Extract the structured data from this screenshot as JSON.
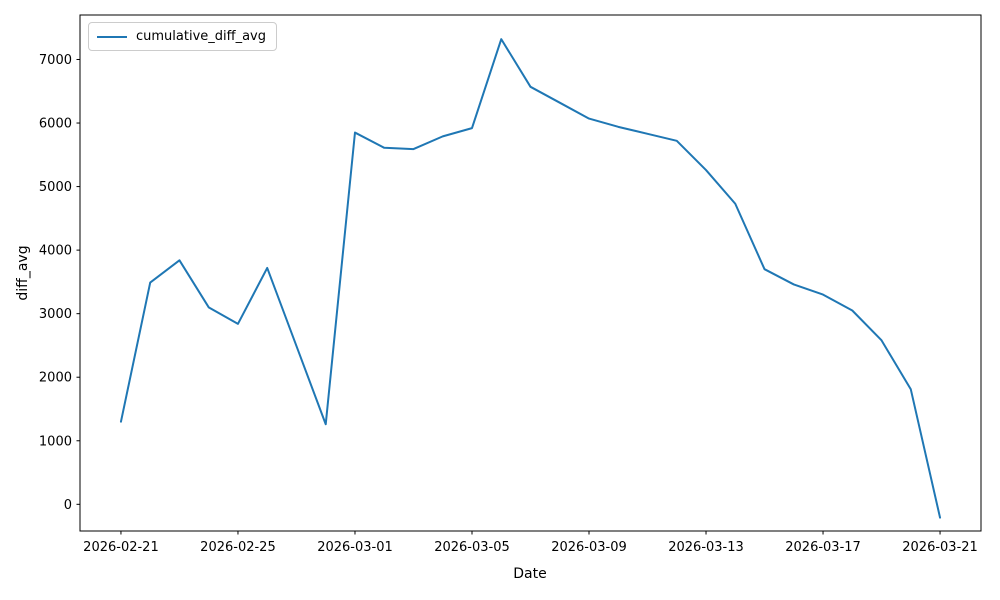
{
  "chart_data": {
    "type": "line",
    "title": "",
    "xlabel": "Date",
    "ylabel": "diff_avg",
    "grid": false,
    "legend_position": "upper left",
    "line_color": "#1f77b4",
    "axis_color": "#000000",
    "x": [
      "2026-02-21",
      "2026-02-22",
      "2026-02-23",
      "2026-02-24",
      "2026-02-25",
      "2026-02-26",
      "2026-02-27",
      "2026-02-28",
      "2026-03-01",
      "2026-03-02",
      "2026-03-03",
      "2026-03-04",
      "2026-03-05",
      "2026-03-06",
      "2026-03-07",
      "2026-03-08",
      "2026-03-09",
      "2026-03-10",
      "2026-03-11",
      "2026-03-12",
      "2026-03-13",
      "2026-03-14",
      "2026-03-15",
      "2026-03-16",
      "2026-03-17",
      "2026-03-18",
      "2026-03-19",
      "2026-03-20",
      "2026-03-21"
    ],
    "series": [
      {
        "name": "cumulative_diff_avg",
        "values": [
          1300,
          3490,
          3840,
          3100,
          2840,
          3720,
          2490,
          1260,
          5850,
          5610,
          5590,
          5790,
          5920,
          7320,
          6570,
          6320,
          6070,
          5940,
          5830,
          5720,
          5260,
          4730,
          3700,
          3460,
          3300,
          3050,
          2580,
          1810,
          -210
        ]
      }
    ],
    "x_tick_labels": [
      "2026-02-21",
      "2026-02-25",
      "2026-03-01",
      "2026-03-05",
      "2026-03-09",
      "2026-03-13",
      "2026-03-17",
      "2026-03-21"
    ],
    "y_tick_labels": [
      "0",
      "1000",
      "2000",
      "3000",
      "4000",
      "5000",
      "6000",
      "7000"
    ],
    "y_ticks": [
      0,
      1000,
      2000,
      3000,
      4000,
      5000,
      6000,
      7000
    ],
    "xlim_days": [
      -1.4,
      29.4
    ],
    "ylim": [
      -420,
      7700
    ]
  }
}
